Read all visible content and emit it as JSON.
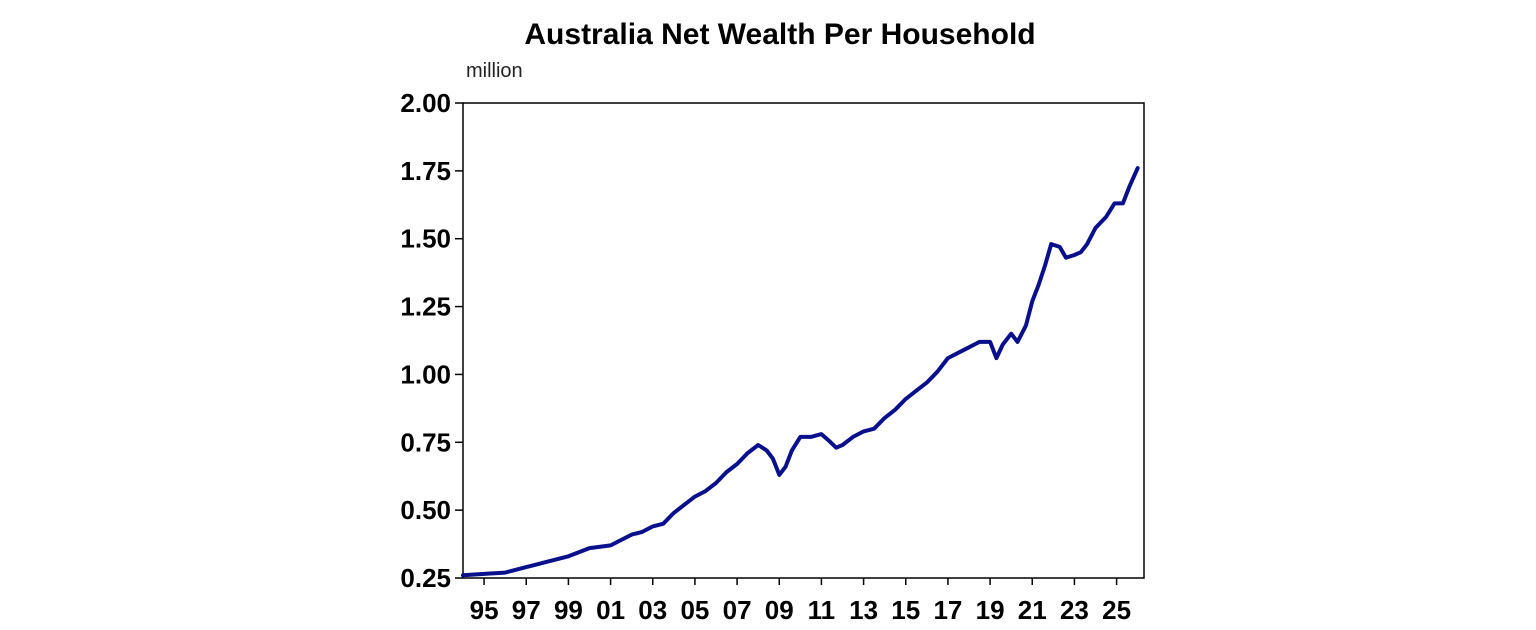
{
  "chart_data": {
    "type": "line",
    "title": "Australia Net Wealth Per Household",
    "ylabel": "million",
    "xlabel": "",
    "ylim": [
      0.25,
      2.0
    ],
    "xlim": [
      1994.0,
      2026.3
    ],
    "yticks": [
      "2.00",
      "1.75",
      "1.50",
      "1.25",
      "1.00",
      "0.75",
      "0.50",
      "0.25"
    ],
    "ytick_values": [
      2.0,
      1.75,
      1.5,
      1.25,
      1.0,
      0.75,
      0.5,
      0.25
    ],
    "xticks": [
      "95",
      "97",
      "99",
      "01",
      "03",
      "05",
      "07",
      "09",
      "11",
      "13",
      "15",
      "17",
      "19",
      "21",
      "23",
      "25"
    ],
    "xtick_values": [
      1995,
      1997,
      1999,
      2001,
      2003,
      2005,
      2007,
      2009,
      2011,
      2013,
      2015,
      2017,
      2019,
      2021,
      2023,
      2025
    ],
    "grid": false,
    "legend": "none",
    "series": [
      {
        "color": "#0a0f8c",
        "points": [
          [
            1994.0,
            0.26
          ],
          [
            1995.0,
            0.265
          ],
          [
            1996.0,
            0.27
          ],
          [
            1997.0,
            0.29
          ],
          [
            1997.5,
            0.3
          ],
          [
            1998.0,
            0.31
          ],
          [
            1999.0,
            0.33
          ],
          [
            2000.0,
            0.36
          ],
          [
            2001.0,
            0.37
          ],
          [
            2001.5,
            0.39
          ],
          [
            2002.0,
            0.41
          ],
          [
            2002.5,
            0.42
          ],
          [
            2003.0,
            0.44
          ],
          [
            2003.5,
            0.45
          ],
          [
            2004.0,
            0.49
          ],
          [
            2004.5,
            0.52
          ],
          [
            2005.0,
            0.55
          ],
          [
            2005.5,
            0.57
          ],
          [
            2006.0,
            0.6
          ],
          [
            2006.5,
            0.64
          ],
          [
            2007.0,
            0.67
          ],
          [
            2007.5,
            0.71
          ],
          [
            2008.0,
            0.74
          ],
          [
            2008.4,
            0.72
          ],
          [
            2008.7,
            0.69
          ],
          [
            2009.0,
            0.63
          ],
          [
            2009.3,
            0.66
          ],
          [
            2009.6,
            0.72
          ],
          [
            2010.0,
            0.77
          ],
          [
            2010.5,
            0.77
          ],
          [
            2011.0,
            0.78
          ],
          [
            2011.3,
            0.76
          ],
          [
            2011.7,
            0.73
          ],
          [
            2012.0,
            0.74
          ],
          [
            2012.5,
            0.77
          ],
          [
            2013.0,
            0.79
          ],
          [
            2013.5,
            0.8
          ],
          [
            2014.0,
            0.84
          ],
          [
            2014.5,
            0.87
          ],
          [
            2015.0,
            0.91
          ],
          [
            2015.5,
            0.94
          ],
          [
            2016.0,
            0.97
          ],
          [
            2016.5,
            1.01
          ],
          [
            2017.0,
            1.06
          ],
          [
            2017.5,
            1.08
          ],
          [
            2018.0,
            1.1
          ],
          [
            2018.5,
            1.12
          ],
          [
            2019.0,
            1.12
          ],
          [
            2019.3,
            1.06
          ],
          [
            2019.6,
            1.11
          ],
          [
            2020.0,
            1.15
          ],
          [
            2020.3,
            1.12
          ],
          [
            2020.7,
            1.18
          ],
          [
            2021.0,
            1.27
          ],
          [
            2021.3,
            1.33
          ],
          [
            2021.6,
            1.4
          ],
          [
            2021.9,
            1.48
          ],
          [
            2022.3,
            1.47
          ],
          [
            2022.6,
            1.43
          ],
          [
            2023.0,
            1.44
          ],
          [
            2023.3,
            1.45
          ],
          [
            2023.6,
            1.48
          ],
          [
            2024.0,
            1.54
          ],
          [
            2024.5,
            1.58
          ],
          [
            2024.9,
            1.63
          ],
          [
            2025.3,
            1.63
          ],
          [
            2025.6,
            1.69
          ],
          [
            2026.0,
            1.76
          ]
        ]
      }
    ]
  }
}
